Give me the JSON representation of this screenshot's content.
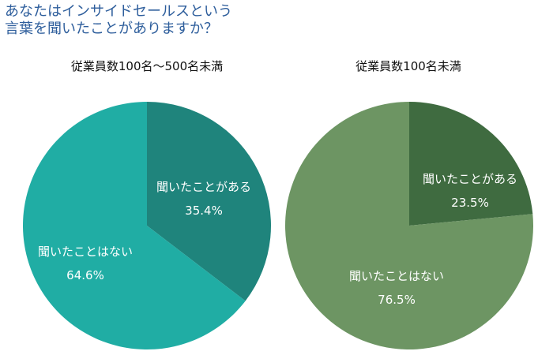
{
  "title": {
    "line1": "あなたはインサイドセールスという",
    "line2": "言葉を聞いたことがありますか？"
  },
  "chart_data": [
    {
      "type": "pie",
      "title": "従業員数100名～500名未満",
      "slices": [
        {
          "label": "聞いたことがある",
          "value": 35.4,
          "value_label": "35.4%",
          "color": "#1f847c"
        },
        {
          "label": "聞いたことはない",
          "value": 64.6,
          "value_label": "64.6%",
          "color": "#20ada4"
        }
      ],
      "start": "top",
      "direction": "clockwise",
      "legend": "none"
    },
    {
      "type": "pie",
      "title": "従業員数100名未満",
      "slices": [
        {
          "label": "聞いたことがある",
          "value": 23.5,
          "value_label": "23.5%",
          "color": "#3f6b40"
        },
        {
          "label": "聞いたことはない",
          "value": 76.5,
          "value_label": "76.5%",
          "color": "#6d9563"
        }
      ],
      "start": "top",
      "direction": "clockwise",
      "legend": "none"
    }
  ]
}
